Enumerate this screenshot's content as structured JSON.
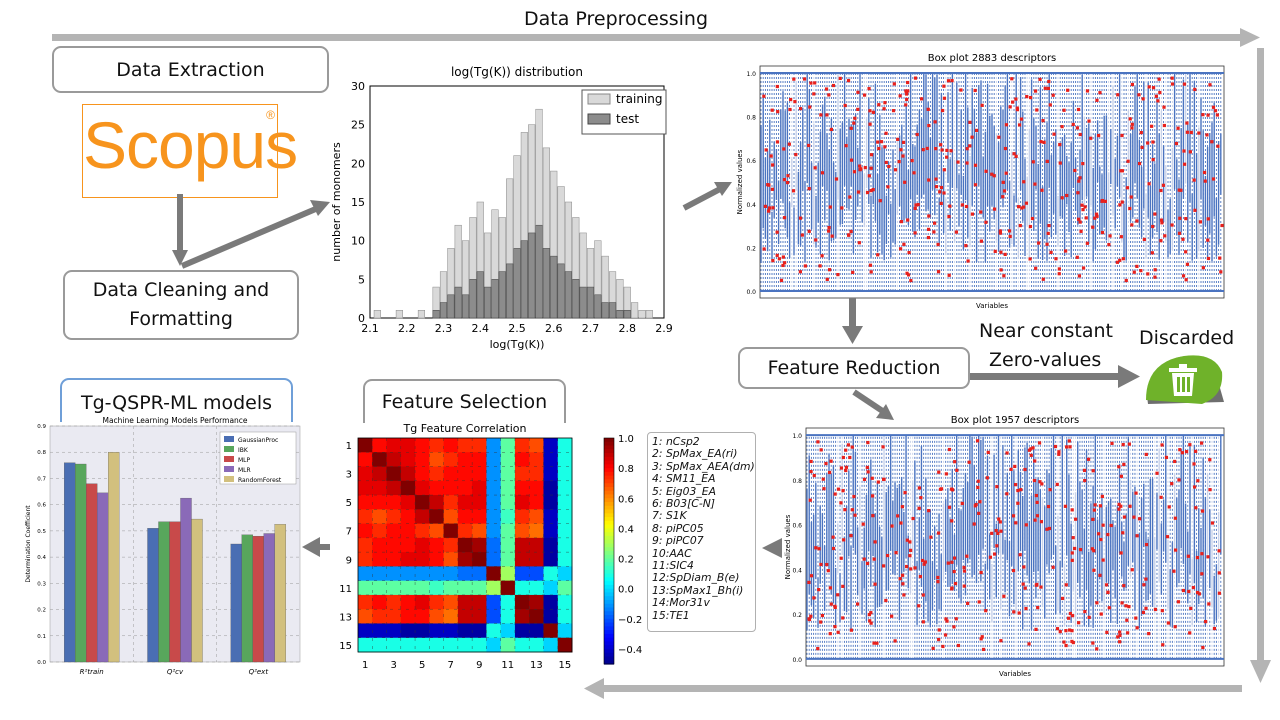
{
  "header": {
    "title": "Data Preprocessing"
  },
  "boxes": {
    "data_extraction": "Data Extraction",
    "data_cleaning_line1": "Data Cleaning and",
    "data_cleaning_line2": "Formatting",
    "feature_reduction": "Feature Reduction",
    "feature_selection": "Feature Selection",
    "models": "Tg-QSPR-ML models"
  },
  "scopus": {
    "word": "Scopus",
    "mark": "®"
  },
  "reduction_notes": {
    "line1": "Near constant",
    "line2": "Zero-values",
    "discarded": "Discarded"
  },
  "histogram": {
    "title": "log(Tg(K)) distribution",
    "xlabel": "log(Tg(K))",
    "ylabel": "number of monomers",
    "legend": [
      "training",
      "test"
    ],
    "xticks": [
      "2.1",
      "2.2",
      "2.3",
      "2.4",
      "2.5",
      "2.6",
      "2.7",
      "2.8",
      "2.9"
    ],
    "yticks": [
      "0",
      "5",
      "10",
      "15",
      "20",
      "25",
      "30"
    ]
  },
  "boxplot_top": {
    "title": "Box plot 2883 descriptors",
    "xlabel": "Variables",
    "ylabel": "Normalized values",
    "yticks": [
      "0.0",
      "0.2",
      "0.4",
      "0.6",
      "0.8",
      "1.0"
    ]
  },
  "boxplot_bottom": {
    "title": "Box plot 1957 descriptors",
    "xlabel": "Variables",
    "ylabel": "Normalized values",
    "yticks": [
      "0.0",
      "0.2",
      "0.4",
      "0.6",
      "0.8",
      "1.0"
    ]
  },
  "heatmap": {
    "title": "Tg Feature Correlation",
    "yticks": [
      "1",
      "3",
      "5",
      "7",
      "9",
      "11",
      "13",
      "15"
    ],
    "xticks": [
      "1",
      "3",
      "5",
      "7",
      "9",
      "11",
      "13",
      "15"
    ],
    "colorbar_ticks": [
      "1.0",
      "0.8",
      "0.6",
      "0.4",
      "0.2",
      "0.0",
      "−0.2",
      "−0.4"
    ],
    "features": [
      "1: nCsp2",
      "2: SpMax_EA(ri)",
      "3: SpMax_AEA(dm)",
      "4: SM11_EA",
      "5: Eig03_EA",
      "6: B03[C-N]",
      "7: S1K",
      "8: piPC05",
      "9: piPC07",
      "10:AAC",
      "11:SIC4",
      "12:SpDiam_B(e)",
      "13:SpMax1_Bh(i)",
      "14:Mor31v",
      "15:TE1"
    ]
  },
  "perf_chart": {
    "title": "Machine Learning Models Performance",
    "ylabel": "Determination Coefficient",
    "yticks": [
      "0.0",
      "0.1",
      "0.2",
      "0.3",
      "0.4",
      "0.5",
      "0.6",
      "0.7",
      "0.8",
      "0.9"
    ],
    "groups": [
      "R²train",
      "Q²cv",
      "Q²ext"
    ],
    "legend": [
      "GaussianProc",
      "IBK",
      "MLP",
      "MLR",
      "RandomForest"
    ]
  },
  "chart_data": [
    {
      "type": "bar",
      "title": "Machine Learning Models Performance",
      "ylabel": "Determination Coefficient",
      "ylim": [
        0,
        0.9
      ],
      "categories": [
        "R²train",
        "Q²cv",
        "Q²ext"
      ],
      "series": [
        {
          "name": "GaussianProc",
          "values": [
            0.76,
            0.51,
            0.45
          ]
        },
        {
          "name": "IBK",
          "values": [
            0.755,
            0.535,
            0.485
          ]
        },
        {
          "name": "MLP",
          "values": [
            0.68,
            0.535,
            0.48
          ]
        },
        {
          "name": "MLR",
          "values": [
            0.645,
            0.625,
            0.49
          ]
        },
        {
          "name": "RandomForest",
          "values": [
            0.8,
            0.545,
            0.525
          ]
        }
      ],
      "colors": [
        "#4a6eb3",
        "#58a65c",
        "#c84a4a",
        "#8a6ab8",
        "#d2c07e"
      ]
    },
    {
      "type": "heatmap",
      "title": "Tg Feature Correlation",
      "labels": [
        "1",
        "2",
        "3",
        "4",
        "5",
        "6",
        "7",
        "8",
        "9",
        "10",
        "11",
        "12",
        "13",
        "14",
        "15"
      ],
      "zlim": [
        -0.5,
        1.0
      ],
      "matrix": [
        [
          1.0,
          0.8,
          0.85,
          0.85,
          0.8,
          0.75,
          0.8,
          0.75,
          0.75,
          -0.1,
          0.2,
          0.75,
          0.7,
          -0.4,
          0.1
        ],
        [
          0.8,
          1.0,
          0.9,
          0.85,
          0.8,
          0.7,
          0.75,
          0.8,
          0.8,
          -0.1,
          0.2,
          0.8,
          0.75,
          -0.4,
          0.1
        ],
        [
          0.85,
          0.9,
          1.0,
          0.9,
          0.8,
          0.75,
          0.8,
          0.8,
          0.8,
          -0.1,
          0.2,
          0.75,
          0.75,
          -0.4,
          0.1
        ],
        [
          0.85,
          0.85,
          0.9,
          1.0,
          0.85,
          0.8,
          0.8,
          0.8,
          0.85,
          -0.1,
          0.2,
          0.8,
          0.8,
          -0.45,
          0.1
        ],
        [
          0.8,
          0.8,
          0.8,
          0.85,
          1.0,
          0.9,
          0.75,
          0.85,
          0.85,
          -0.1,
          0.2,
          0.85,
          0.8,
          -0.45,
          0.1
        ],
        [
          0.75,
          0.7,
          0.75,
          0.8,
          0.9,
          1.0,
          0.7,
          0.8,
          0.8,
          -0.1,
          0.15,
          0.75,
          0.7,
          -0.4,
          0.1
        ],
        [
          0.8,
          0.75,
          0.8,
          0.8,
          0.75,
          0.7,
          1.0,
          0.75,
          0.7,
          -0.1,
          0.2,
          0.7,
          0.65,
          -0.4,
          0.1
        ],
        [
          0.75,
          0.8,
          0.8,
          0.8,
          0.85,
          0.8,
          0.75,
          1.0,
          0.95,
          -0.15,
          0.2,
          0.9,
          0.9,
          -0.45,
          0.1
        ],
        [
          0.75,
          0.8,
          0.8,
          0.85,
          0.85,
          0.8,
          0.7,
          0.95,
          1.0,
          -0.15,
          0.2,
          0.9,
          0.9,
          -0.45,
          0.1
        ],
        [
          -0.1,
          -0.1,
          -0.1,
          -0.1,
          -0.1,
          -0.1,
          -0.1,
          -0.15,
          -0.15,
          1.0,
          0.3,
          -0.2,
          -0.2,
          0.1,
          0.0
        ],
        [
          0.2,
          0.2,
          0.2,
          0.2,
          0.2,
          0.15,
          0.2,
          0.2,
          0.2,
          0.3,
          1.0,
          0.1,
          0.1,
          0.0,
          0.2
        ],
        [
          0.75,
          0.8,
          0.75,
          0.8,
          0.85,
          0.75,
          0.7,
          0.9,
          0.9,
          -0.2,
          0.1,
          1.0,
          0.95,
          -0.45,
          0.1
        ],
        [
          0.7,
          0.75,
          0.75,
          0.8,
          0.8,
          0.7,
          0.65,
          0.9,
          0.9,
          -0.2,
          0.1,
          0.95,
          1.0,
          -0.45,
          0.1
        ],
        [
          -0.4,
          -0.4,
          -0.4,
          -0.45,
          -0.45,
          -0.4,
          -0.4,
          -0.45,
          -0.45,
          0.1,
          0.0,
          -0.45,
          -0.45,
          1.0,
          0.0
        ],
        [
          0.1,
          0.1,
          0.1,
          0.1,
          0.1,
          0.1,
          0.1,
          0.1,
          0.1,
          0.0,
          0.2,
          0.1,
          0.1,
          0.0,
          1.0
        ]
      ]
    },
    {
      "type": "bar",
      "title": "log(Tg(K)) distribution",
      "xlabel": "log(Tg(K))",
      "ylabel": "number of monomers",
      "xlim": [
        2.1,
        2.9
      ],
      "ylim": [
        0,
        30
      ],
      "series": [
        {
          "name": "training",
          "color": "#d9d9d9",
          "x": [
            2.12,
            2.18,
            2.24,
            2.28,
            2.3,
            2.32,
            2.34,
            2.36,
            2.38,
            2.4,
            2.42,
            2.44,
            2.46,
            2.48,
            2.5,
            2.52,
            2.54,
            2.56,
            2.58,
            2.6,
            2.62,
            2.64,
            2.66,
            2.68,
            2.7,
            2.72,
            2.74,
            2.76,
            2.78,
            2.8,
            2.82,
            2.84,
            2.86
          ],
          "values": [
            1,
            1,
            1,
            4,
            6,
            9,
            12,
            10,
            13,
            15,
            11,
            14,
            13,
            18,
            21,
            24,
            25,
            27,
            22,
            19,
            17,
            15,
            13,
            11,
            9,
            10,
            8,
            6,
            5,
            4,
            2,
            1,
            1
          ]
        },
        {
          "name": "test",
          "color": "#8c8c8c",
          "x": [
            2.28,
            2.3,
            2.32,
            2.34,
            2.36,
            2.38,
            2.4,
            2.42,
            2.44,
            2.46,
            2.48,
            2.5,
            2.52,
            2.54,
            2.56,
            2.58,
            2.6,
            2.62,
            2.64,
            2.66,
            2.68,
            2.7,
            2.72,
            2.74,
            2.76,
            2.78,
            2.8
          ],
          "values": [
            1,
            2,
            3,
            4,
            3,
            5,
            6,
            4,
            5,
            6,
            7,
            9,
            10,
            11,
            12,
            9,
            8,
            7,
            6,
            5,
            4,
            4,
            3,
            2,
            2,
            1,
            1
          ]
        }
      ]
    }
  ]
}
